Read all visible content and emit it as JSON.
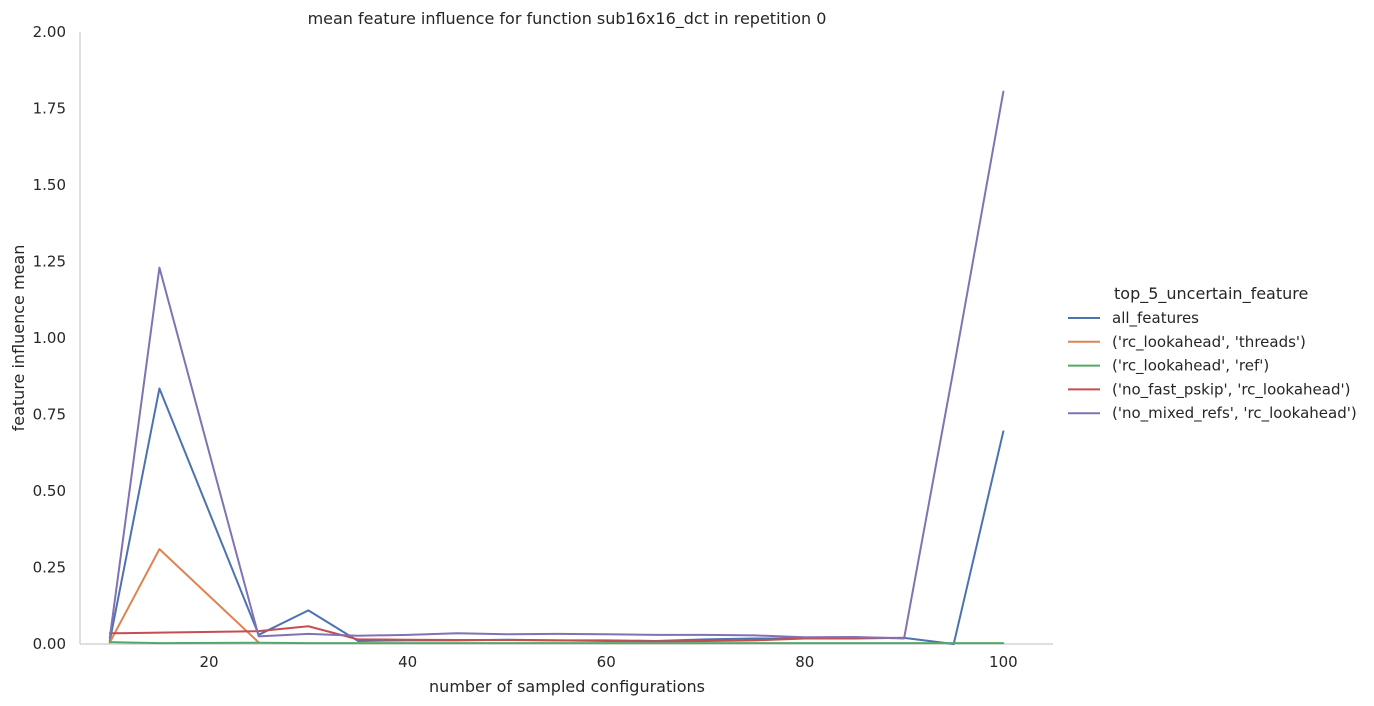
{
  "chart_data": {
    "type": "line",
    "title": "mean feature influence for function sub16x16_dct in repetition 0",
    "xlabel": "number of sampled configurations",
    "ylabel": "feature influence mean",
    "xlim": [
      7,
      105
    ],
    "ylim": [
      0,
      2
    ],
    "xticks": [
      20,
      40,
      60,
      80,
      100
    ],
    "yticks": [
      0.0,
      0.25,
      0.5,
      0.75,
      1.0,
      1.25,
      1.5,
      1.75,
      2.0
    ],
    "ytick_labels": [
      "0.00",
      "0.25",
      "0.50",
      "0.75",
      "1.00",
      "1.25",
      "1.50",
      "1.75",
      "2.00"
    ],
    "grid": false,
    "legend": {
      "title": "top_5_uncertain_feature",
      "position": "right"
    },
    "x": [
      10,
      15,
      25,
      30,
      35,
      40,
      45,
      50,
      55,
      60,
      65,
      70,
      75,
      80,
      85,
      90,
      95,
      100
    ],
    "series": [
      {
        "name": "all_features",
        "color": "#4c72b0",
        "values": [
          0.01,
          0.835,
          0.03,
          0.11,
          0.01,
          0.012,
          0.012,
          0.014,
          0.012,
          0.012,
          0.01,
          0.015,
          0.018,
          0.018,
          0.018,
          0.02,
          0.0,
          0.695
        ]
      },
      {
        "name": "('rc_lookahead', 'threads')",
        "color": "#dd8452",
        "values": [
          0.005,
          0.31,
          0.005,
          null,
          null,
          null,
          null,
          null,
          null,
          null,
          null,
          null,
          null,
          null,
          null,
          null,
          null,
          null
        ]
      },
      {
        "name": "('rc_lookahead', 'ref')",
        "color": "#55a868",
        "values": [
          0.006,
          0.003,
          0.004,
          0.003,
          0.003,
          0.003,
          0.003,
          0.003,
          0.003,
          0.003,
          0.003,
          0.003,
          0.003,
          0.003,
          0.003,
          0.003,
          0.003,
          0.003
        ]
      },
      {
        "name": "('no_fast_pskip', 'rc_lookahead')",
        "color": "#c44e52",
        "values": [
          0.035,
          0.037,
          0.042,
          0.058,
          0.015,
          0.014,
          0.013,
          0.013,
          0.012,
          0.01,
          0.009,
          0.01,
          0.012,
          0.018,
          0.02,
          0.02,
          null,
          null
        ]
      },
      {
        "name": "('no_mixed_refs', 'rc_lookahead')",
        "color": "#8172b3",
        "values": [
          0.02,
          1.23,
          0.025,
          0.033,
          0.027,
          0.03,
          0.035,
          0.032,
          0.033,
          0.032,
          0.03,
          0.03,
          0.028,
          0.022,
          0.023,
          0.018,
          0.9,
          1.805
        ]
      }
    ]
  }
}
